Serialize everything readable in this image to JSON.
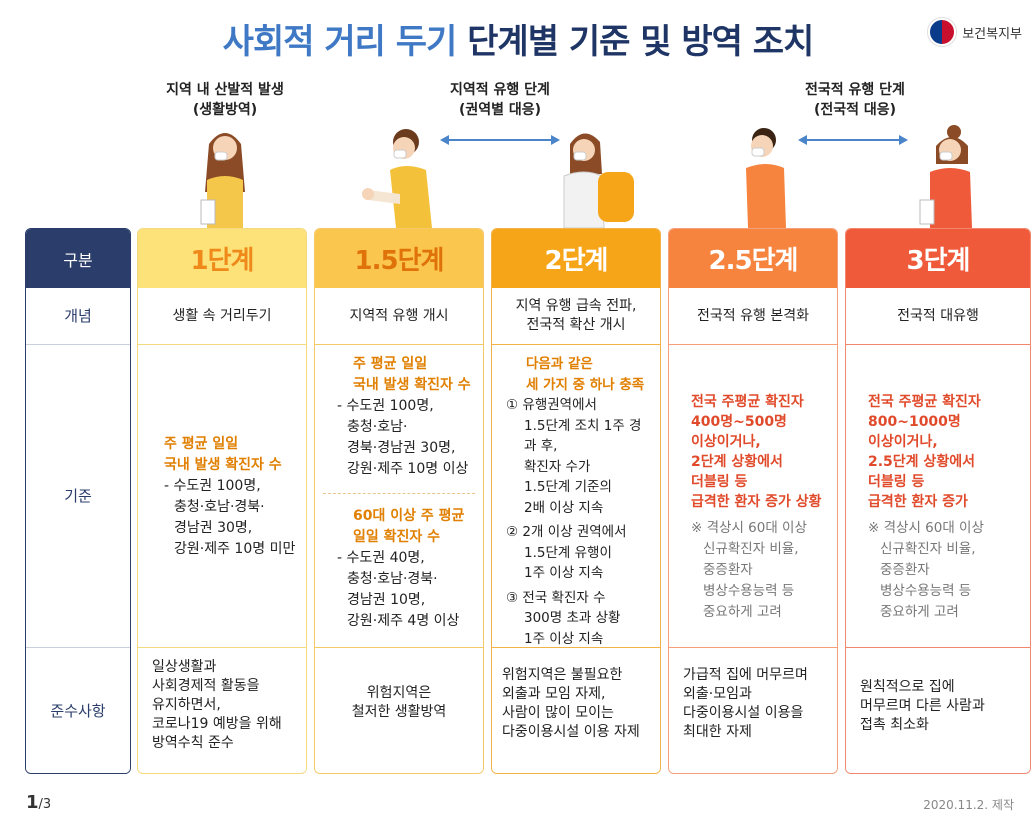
{
  "header": {
    "title_part1": "사회적 거리 두기",
    "title_part2": "단계별 기준 및 방역 조치",
    "org_name": "보건복지부"
  },
  "phases": {
    "p1_line1": "지역 내 산발적 발생",
    "p1_line2": "(생활방역)",
    "p2_line1": "지역적 유행 단계",
    "p2_line2": "(권역별 대응)",
    "p3_line1": "전국적 유행 단계",
    "p3_line2": "(전국적 대응)"
  },
  "row_labels": {
    "header": "구분",
    "concept": "개념",
    "criteria": "기준",
    "compliance": "준수사항"
  },
  "stages": [
    {
      "name": "1단계",
      "concept": "생활 속 거리두기",
      "crit_title1": "주 평균 일일",
      "crit_title2": "국내 발생 확진자 수",
      "crit_lines": [
        "- 수도권 100명,",
        "충청·호남·경북·",
        "경남권 30명,",
        "강원·제주 10명 미만"
      ],
      "compliance": [
        "일상생활과",
        "사회경제적 활동을",
        "유지하면서,",
        "코로나19 예방을 위해",
        "방역수칙 준수"
      ]
    },
    {
      "name": "1.5단계",
      "concept": "지역적 유행 개시",
      "crit_a_title1": "주 평균 일일",
      "crit_a_title2": "국내 발생 확진자 수",
      "crit_a_lines": [
        "- 수도권 100명,",
        "충청·호남·",
        "경북·경남권 30명,",
        "강원·제주 10명 이상"
      ],
      "crit_b_title1": "60대 이상 주 평균",
      "crit_b_title2": "일일 확진자 수",
      "crit_b_lines": [
        "- 수도권 40명,",
        "충청·호남·경북·",
        "경남권 10명,",
        "강원·제주 4명 이상"
      ],
      "compliance": [
        "위험지역은",
        "철저한 생활방역"
      ]
    },
    {
      "name": "2단계",
      "concept_line1": "지역 유행 급속 전파,",
      "concept_line2": "전국적 확산 개시",
      "crit_title1": "다음과 같은",
      "crit_title2": "세 가지 중 하나 충족",
      "item1": [
        "① 유행권역에서",
        "1.5단계 조치 1주 경과 후,",
        "확진자 수가",
        "1.5단계 기준의",
        "2배 이상 지속"
      ],
      "item2": [
        "② 2개 이상 권역에서",
        "1.5단계 유행이",
        "1주 이상 지속"
      ],
      "item3": [
        "③ 전국 확진자 수",
        "300명 초과 상황",
        "1주 이상 지속"
      ],
      "compliance": [
        "위험지역은 불필요한",
        "외출과 모임 자제,",
        "사람이 많이 모이는",
        "다중이용시설 이용 자제"
      ]
    },
    {
      "name": "2.5단계",
      "concept": "전국적 유행 본격화",
      "crit_main": [
        "전국 주평균 확진자",
        "400명~500명",
        "이상이거나,",
        "2단계 상황에서",
        "더블링 등",
        "급격한 환자 증가 상황"
      ],
      "note": [
        "※ 격상시 60대 이상",
        "신규확진자 비율,",
        "중증환자",
        "병상수용능력 등",
        "중요하게 고려"
      ],
      "compliance": [
        "가급적 집에 머무르며",
        "외출·모임과",
        "다중이용시설 이용을",
        "최대한 자제"
      ]
    },
    {
      "name": "3단계",
      "concept": "전국적 대유행",
      "crit_main": [
        "전국 주평균 확진자",
        "800~1000명",
        "이상이거나,",
        "2.5단계 상황에서",
        "더블링 등",
        "급격한 환자 증가"
      ],
      "note": [
        "※ 격상시 60대 이상",
        "신규확진자 비율,",
        "중증환자",
        "병상수용능력 등",
        "중요하게 고려"
      ],
      "compliance": [
        "원칙적으로 집에",
        "머무르며 다른 사람과",
        "접촉 최소화"
      ]
    }
  ],
  "footer": {
    "page": "1",
    "page_total": "/3",
    "made": "2020.11.2. 제작"
  },
  "colors": {
    "label_head": "#2a3d6b",
    "stage1": "#fde27a",
    "stage15": "#fbc64d",
    "stage2": "#f6a418",
    "stage25": "#f6843f",
    "stage3": "#ef5a3a"
  }
}
